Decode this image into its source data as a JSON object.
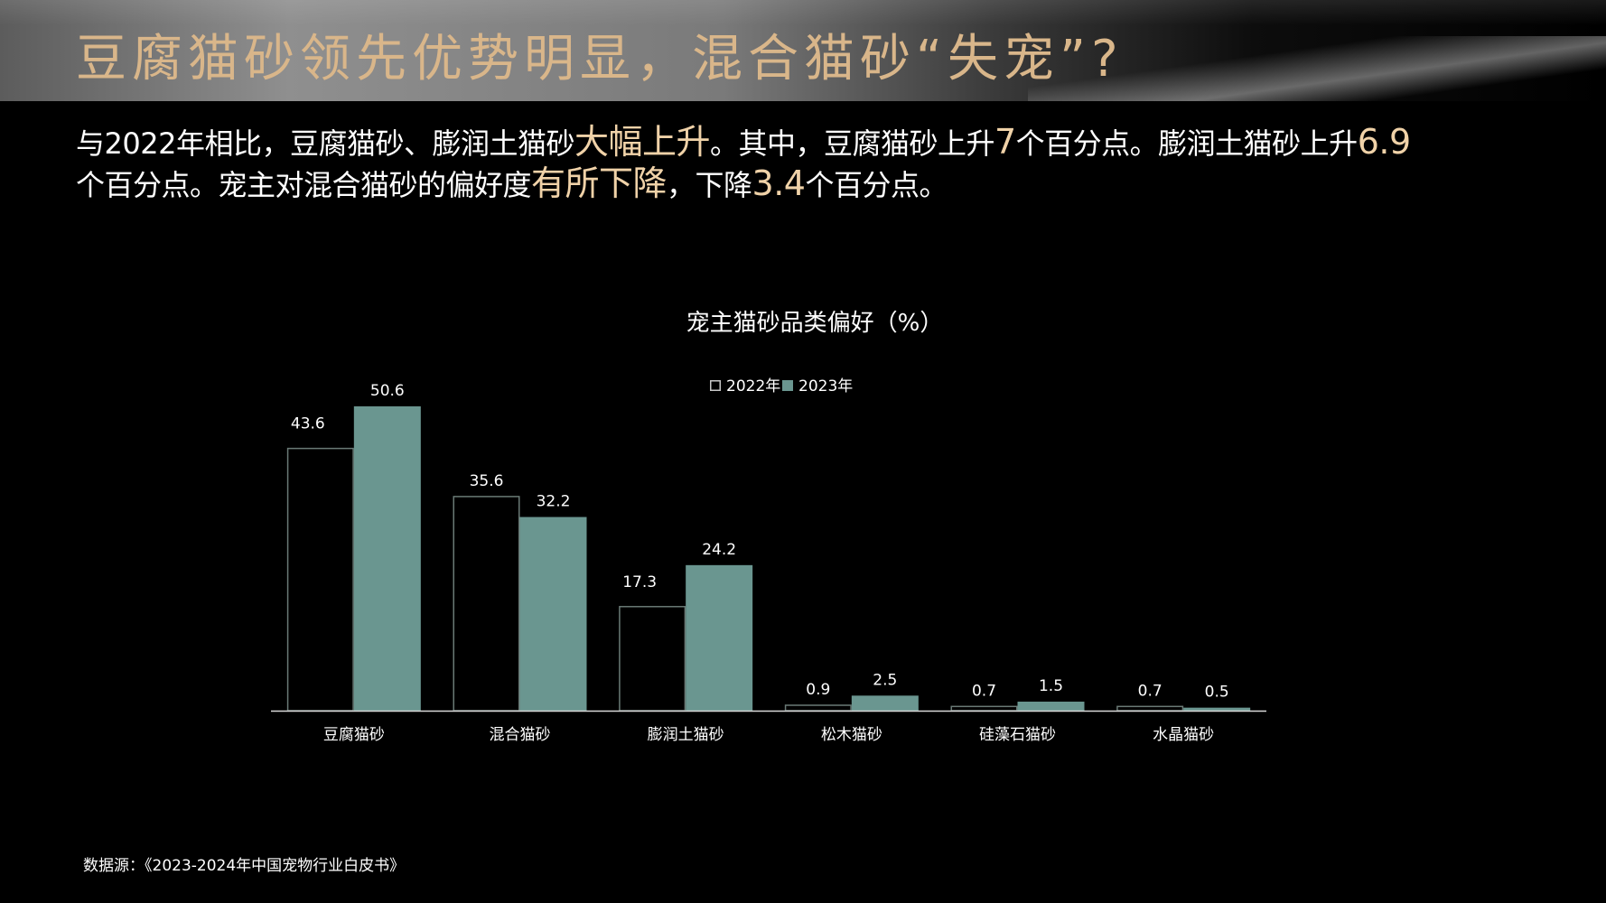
{
  "header": {
    "title": "豆腐猫砂领先优势明显，混合猫砂“失宠”?"
  },
  "summary": {
    "p1": "与2022年相比，豆腐猫砂、膨润土猫砂",
    "h1": "大幅上升",
    "p2": "。其中，豆腐猫砂上升",
    "h2": "7",
    "p3": "个百分点。膨润土猫砂上升",
    "h3": "6.9",
    "p4": "个百分点。宠主对混合猫砂的偏好度",
    "h4": "有所下降",
    "p5": "，下降",
    "h5": "3.4",
    "p6": "个百分点。"
  },
  "footer": {
    "source": "数据源：《2023-2024年中国宠物行业白皮书》"
  },
  "colors": {
    "title": "#d9b68a",
    "highlight": "#f0d2a8",
    "series_2023": "#6a9690",
    "series_2022_outline": "#6a7a76",
    "axis": "#d9d9d9"
  },
  "chart_data": {
    "type": "bar",
    "title": "宠主猫砂品类偏好（%）",
    "categories": [
      "豆腐猫砂",
      "混合猫砂",
      "膨润土猫砂",
      "松木猫砂",
      "硅藻石猫砂",
      "水晶猫砂"
    ],
    "series": [
      {
        "name": "2022年",
        "values": [
          43.6,
          35.6,
          17.3,
          0.9,
          0.7,
          0.7
        ],
        "style": "outline"
      },
      {
        "name": "2023年",
        "values": [
          50.6,
          32.2,
          24.2,
          2.5,
          1.5,
          0.5
        ],
        "style": "filled"
      }
    ],
    "ylim": [
      0,
      56
    ],
    "legend_position": "top-center",
    "grid": false,
    "data_labels": true
  }
}
